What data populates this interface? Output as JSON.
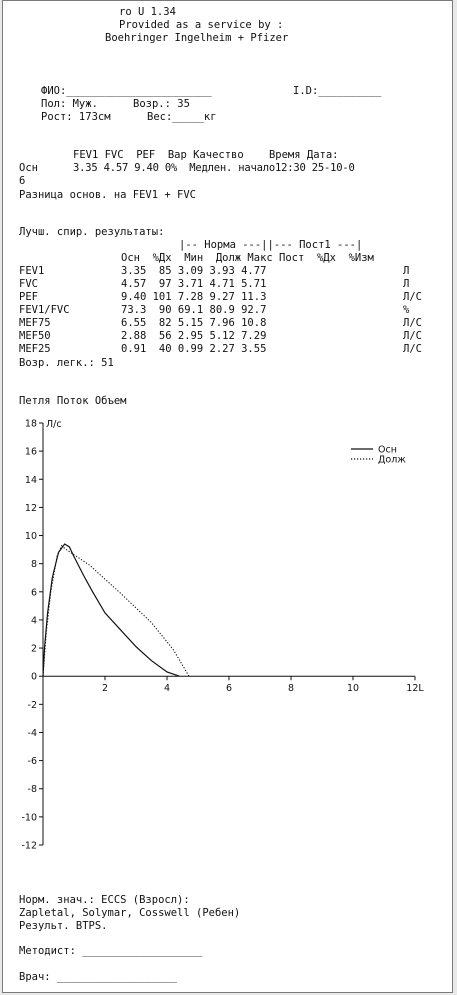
{
  "header": {
    "version": "ro U 1.34",
    "service_line": "Provided as a service by :",
    "sponsor_line": "Boehringer Ingelheim + Pfizer"
  },
  "patient": {
    "name_label": "ФИО:_______________________",
    "id_label": "I.D:__________",
    "sex_label": "Пол: Муж.",
    "age_label": "Возр.: 35",
    "height_label": "Рост: 173см",
    "weight_label": "Вес:_____кг"
  },
  "summary": {
    "header_line": "FEV1 FVC  PEF  Вар Качество    Время Дата:",
    "row_label": "Осн",
    "row_values": "3.35 4.57 9.40 0%  Медлен. начало12:30 25-10-0",
    "wrap": "6",
    "diff_line": "Разница основ. на FEV1 + FVC"
  },
  "results": {
    "title": "Лучш. спир. результаты:",
    "group_header": "|-- Норма ---||--- Пост1 ---|",
    "col_header": "Осн  %Дх  Мин  Долж Макс Пост  %Дх  %Изм",
    "rows": [
      {
        "label": "FEV1",
        "values": "3.35  85 3.09 3.93 4.77",
        "unit": "Л"
      },
      {
        "label": "FVC",
        "values": "4.57  97 3.71 4.71 5.71",
        "unit": "Л"
      },
      {
        "label": "PEF",
        "values": "9.40 101 7.28 9.27 11.3",
        "unit": "Л/С"
      },
      {
        "label": "FEV1/FVC",
        "values": "73.3  90 69.1 80.9 92.7",
        "unit": "%"
      },
      {
        "label": "MEF75",
        "values": "6.55  82 5.15 7.96 10.8",
        "unit": "Л/С"
      },
      {
        "label": "MEF50",
        "values": "2.88  56 2.95 5.12 7.29",
        "unit": "Л/С"
      },
      {
        "label": "MEF25",
        "values": "0.91  40 0.99 2.27 3.55",
        "unit": "Л/С"
      }
    ],
    "lung_age": "Возр. легк.: 51"
  },
  "chart_data": {
    "type": "line",
    "title": "Петля Поток Объем",
    "ylabel": "Л/с",
    "xlabel": "12L",
    "xlim": [
      0,
      12
    ],
    "ylim": [
      -12,
      18
    ],
    "x_ticks": [
      2,
      4,
      6,
      8,
      10,
      12
    ],
    "x_tick_labels": [
      "2",
      "4",
      "6",
      "8",
      "10",
      "12L"
    ],
    "y_ticks": [
      -12,
      -10,
      -8,
      -6,
      -4,
      -2,
      0,
      2,
      4,
      6,
      8,
      10,
      12,
      14,
      16,
      18
    ],
    "legend_position": "top-right",
    "series": [
      {
        "name": "Осн",
        "style": "solid",
        "points": [
          [
            0,
            0
          ],
          [
            0.05,
            2
          ],
          [
            0.15,
            4.5
          ],
          [
            0.3,
            7
          ],
          [
            0.5,
            8.8
          ],
          [
            0.7,
            9.4
          ],
          [
            0.85,
            9.2
          ],
          [
            1.0,
            8.5
          ],
          [
            1.3,
            7.2
          ],
          [
            1.6,
            6
          ],
          [
            2.0,
            4.5
          ],
          [
            2.5,
            3.3
          ],
          [
            3.0,
            2.1
          ],
          [
            3.5,
            1.1
          ],
          [
            4.0,
            0.3
          ],
          [
            4.4,
            0
          ]
        ]
      },
      {
        "name": "Долж",
        "style": "dotted",
        "points": [
          [
            0,
            0
          ],
          [
            0.1,
            3
          ],
          [
            0.25,
            6
          ],
          [
            0.45,
            8.5
          ],
          [
            0.6,
            9.27
          ],
          [
            0.75,
            9.0
          ],
          [
            1.5,
            7.9
          ],
          [
            2.5,
            5.9
          ],
          [
            3.5,
            3.8
          ],
          [
            4.2,
            1.9
          ],
          [
            4.71,
            0
          ]
        ]
      }
    ]
  },
  "footer": {
    "norm_line": "Норм. знач.: ECCS (Взросл):",
    "authors_line": "Zapletal, Solymar, Cosswell (Ребен)",
    "btps_line": "Результ. BTPS.",
    "method_line": "Методист: ___________________",
    "doctor_line": "Врач: ___________________"
  },
  "colors": {
    "paper": "#ffffff",
    "ink": "#111111",
    "background": "#e9e9e9"
  }
}
